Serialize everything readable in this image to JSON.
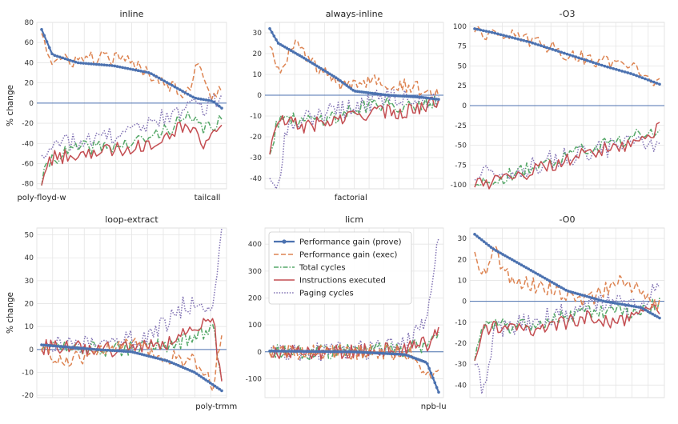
{
  "figure": {
    "ylabel": "% change"
  },
  "legend": {
    "location": "upper-left of center-bottom panel",
    "entries": [
      {
        "name": "Performance gain (prove)",
        "color": "#4C72B0",
        "style": "solid-markers"
      },
      {
        "name": "Performance gain (exec)",
        "color": "#DD8452",
        "style": "dashed"
      },
      {
        "name": "Total cycles",
        "color": "#55A868",
        "style": "dashdot"
      },
      {
        "name": "Instructions executed",
        "color": "#C44E52",
        "style": "solid"
      },
      {
        "name": "Paging cycles",
        "color": "#8172B3",
        "style": "dotted"
      }
    ]
  },
  "chart_data": [
    {
      "type": "line",
      "title": "inline",
      "ylabel": "% change",
      "ylim": [
        -85,
        80
      ],
      "yticks": [
        80,
        60,
        40,
        20,
        0,
        -20,
        -40,
        -60,
        -80
      ],
      "xticklabels": [
        {
          "label": "poly-floyd-w",
          "at": 0
        },
        {
          "label": "tailcall",
          "at": 0.92
        }
      ],
      "n": 70,
      "grid": true,
      "series": [
        {
          "name": "Performance gain (prove)",
          "anchors": [
            [
              0,
              73
            ],
            [
              0.06,
              48
            ],
            [
              0.2,
              40
            ],
            [
              0.4,
              37
            ],
            [
              0.6,
              30
            ],
            [
              0.75,
              15
            ],
            [
              0.85,
              5
            ],
            [
              0.95,
              2
            ],
            [
              1,
              -5
            ]
          ]
        },
        {
          "name": "Performance gain (exec)",
          "anchors": [
            [
              0,
              73
            ],
            [
              0.05,
              40
            ],
            [
              0.3,
              45
            ],
            [
              0.45,
              43
            ],
            [
              0.6,
              30
            ],
            [
              0.8,
              10
            ],
            [
              0.88,
              40
            ],
            [
              0.95,
              5
            ],
            [
              1,
              15
            ]
          ]
        },
        {
          "name": "Total cycles",
          "anchors": [
            [
              0,
              -78
            ],
            [
              0.05,
              -55
            ],
            [
              0.2,
              -45
            ],
            [
              0.45,
              -42
            ],
            [
              0.6,
              -35
            ],
            [
              0.8,
              -15
            ],
            [
              0.9,
              -25
            ],
            [
              1,
              -18
            ]
          ]
        },
        {
          "name": "Instructions executed",
          "anchors": [
            [
              0,
              -78
            ],
            [
              0.05,
              -55
            ],
            [
              0.2,
              -50
            ],
            [
              0.45,
              -45
            ],
            [
              0.6,
              -40
            ],
            [
              0.8,
              -20
            ],
            [
              0.9,
              -40
            ],
            [
              1,
              -15
            ]
          ]
        },
        {
          "name": "Paging cycles",
          "anchors": [
            [
              0,
              -47
            ],
            [
              0.1,
              -40
            ],
            [
              0.3,
              -35
            ],
            [
              0.5,
              -30
            ],
            [
              0.65,
              -15
            ],
            [
              0.8,
              -5
            ],
            [
              0.9,
              -5
            ],
            [
              1,
              10
            ]
          ]
        }
      ]
    },
    {
      "type": "line",
      "title": "always-inline",
      "ylim": [
        -45,
        35
      ],
      "yticks": [
        30,
        20,
        10,
        0,
        -10,
        -20,
        -30,
        -40
      ],
      "xticklabels": [
        {
          "label": "factorial",
          "at": 0.48
        }
      ],
      "n": 80,
      "grid": true,
      "series": [
        {
          "name": "Performance gain (prove)",
          "anchors": [
            [
              0,
              32
            ],
            [
              0.05,
              25
            ],
            [
              0.2,
              18
            ],
            [
              0.4,
              8
            ],
            [
              0.5,
              2
            ],
            [
              0.7,
              0
            ],
            [
              0.9,
              -1
            ],
            [
              1,
              -2
            ]
          ]
        },
        {
          "name": "Performance gain (exec)",
          "anchors": [
            [
              0,
              25
            ],
            [
              0.05,
              12
            ],
            [
              0.15,
              25
            ],
            [
              0.25,
              15
            ],
            [
              0.45,
              3
            ],
            [
              0.6,
              8
            ],
            [
              0.8,
              5
            ],
            [
              1,
              0
            ]
          ]
        },
        {
          "name": "Total cycles",
          "anchors": [
            [
              0,
              -27
            ],
            [
              0.05,
              -12
            ],
            [
              0.2,
              -12
            ],
            [
              0.4,
              -10
            ],
            [
              0.6,
              -4
            ],
            [
              0.8,
              -5
            ],
            [
              1,
              -2
            ]
          ]
        },
        {
          "name": "Instructions executed",
          "anchors": [
            [
              0,
              -27
            ],
            [
              0.05,
              -12
            ],
            [
              0.2,
              -15
            ],
            [
              0.4,
              -12
            ],
            [
              0.6,
              -8
            ],
            [
              0.8,
              -8
            ],
            [
              1,
              -3
            ]
          ]
        },
        {
          "name": "Paging cycles",
          "anchors": [
            [
              0,
              -38
            ],
            [
              0.05,
              -44
            ],
            [
              0.1,
              -15
            ],
            [
              0.3,
              -10
            ],
            [
              0.5,
              -5
            ],
            [
              0.75,
              0
            ],
            [
              1,
              -3
            ]
          ]
        }
      ]
    },
    {
      "type": "line",
      "title": "-O3",
      "ylim": [
        -105,
        105
      ],
      "yticks": [
        100,
        75,
        50,
        25,
        0,
        -25,
        -50,
        -75,
        -100
      ],
      "xticklabels": [],
      "n": 65,
      "grid": true,
      "series": [
        {
          "name": "Performance gain (prove)",
          "anchors": [
            [
              0,
              97
            ],
            [
              0.1,
              92
            ],
            [
              0.3,
              80
            ],
            [
              0.5,
              65
            ],
            [
              0.7,
              50
            ],
            [
              0.85,
              40
            ],
            [
              1,
              27
            ]
          ]
        },
        {
          "name": "Performance gain (exec)",
          "anchors": [
            [
              0,
              96
            ],
            [
              0.15,
              88
            ],
            [
              0.3,
              83
            ],
            [
              0.5,
              65
            ],
            [
              0.7,
              55
            ],
            [
              0.85,
              55
            ],
            [
              1,
              28
            ]
          ]
        },
        {
          "name": "Total cycles",
          "anchors": [
            [
              0,
              -97
            ],
            [
              0.2,
              -88
            ],
            [
              0.4,
              -70
            ],
            [
              0.6,
              -55
            ],
            [
              0.8,
              -45
            ],
            [
              1,
              -28
            ]
          ]
        },
        {
          "name": "Instructions executed",
          "anchors": [
            [
              0,
              -100
            ],
            [
              0.2,
              -90
            ],
            [
              0.4,
              -75
            ],
            [
              0.6,
              -60
            ],
            [
              0.8,
              -50
            ],
            [
              1,
              -28
            ]
          ]
        },
        {
          "name": "Paging cycles",
          "anchors": [
            [
              0,
              -90
            ],
            [
              0.2,
              -85
            ],
            [
              0.4,
              -70
            ],
            [
              0.6,
              -60
            ],
            [
              0.8,
              -50
            ],
            [
              1,
              -45
            ]
          ]
        }
      ]
    },
    {
      "type": "line",
      "title": "loop-extract",
      "ylabel": "% change",
      "ylim": [
        -21,
        53
      ],
      "yticks": [
        50,
        40,
        30,
        20,
        10,
        0,
        -10,
        -20
      ],
      "xticklabels": [
        {
          "label": "poly-trmm",
          "at": 0.97
        }
      ],
      "n": 80,
      "grid": true,
      "series": [
        {
          "name": "Performance gain (prove)",
          "anchors": [
            [
              0,
              2
            ],
            [
              0.3,
              0
            ],
            [
              0.5,
              -1
            ],
            [
              0.7,
              -5
            ],
            [
              0.85,
              -10
            ],
            [
              1,
              -18
            ]
          ]
        },
        {
          "name": "Performance gain (exec)",
          "anchors": [
            [
              0,
              0
            ],
            [
              0.1,
              -5
            ],
            [
              0.3,
              -2
            ],
            [
              0.5,
              2
            ],
            [
              0.7,
              -3
            ],
            [
              0.85,
              -5
            ],
            [
              0.95,
              -15
            ],
            [
              1,
              5
            ]
          ]
        },
        {
          "name": "Total cycles",
          "anchors": [
            [
              0,
              1
            ],
            [
              0.4,
              0
            ],
            [
              0.7,
              2
            ],
            [
              0.85,
              5
            ],
            [
              0.95,
              10
            ],
            [
              1,
              -15
            ]
          ]
        },
        {
          "name": "Instructions executed",
          "anchors": [
            [
              0,
              1
            ],
            [
              0.4,
              0
            ],
            [
              0.7,
              3
            ],
            [
              0.85,
              8
            ],
            [
              0.95,
              15
            ],
            [
              1,
              -16
            ]
          ]
        },
        {
          "name": "Paging cycles",
          "anchors": [
            [
              0,
              1
            ],
            [
              0.3,
              3
            ],
            [
              0.6,
              5
            ],
            [
              0.8,
              20
            ],
            [
              0.95,
              15
            ],
            [
              1,
              50
            ]
          ]
        }
      ]
    },
    {
      "type": "line",
      "title": "licm",
      "ylim": [
        -170,
        460
      ],
      "yticks": [
        400,
        300,
        200,
        100,
        0,
        -100
      ],
      "xticklabels": [
        {
          "label": "npb-lu",
          "at": 0.97
        }
      ],
      "n": 90,
      "grid": true,
      "series": [
        {
          "name": "Performance gain (prove)",
          "anchors": [
            [
              0,
              3
            ],
            [
              0.5,
              0
            ],
            [
              0.8,
              -10
            ],
            [
              0.93,
              -40
            ],
            [
              1,
              -150
            ]
          ]
        },
        {
          "name": "Performance gain (exec)",
          "anchors": [
            [
              0,
              0
            ],
            [
              0.5,
              0
            ],
            [
              0.85,
              -5
            ],
            [
              0.95,
              -100
            ],
            [
              1,
              -90
            ]
          ]
        },
        {
          "name": "Total cycles",
          "anchors": [
            [
              0,
              0
            ],
            [
              0.5,
              0
            ],
            [
              0.8,
              10
            ],
            [
              0.93,
              30
            ],
            [
              1,
              80
            ]
          ]
        },
        {
          "name": "Instructions executed",
          "anchors": [
            [
              0,
              0
            ],
            [
              0.5,
              0
            ],
            [
              0.8,
              10
            ],
            [
              0.93,
              30
            ],
            [
              1,
              70
            ]
          ]
        },
        {
          "name": "Paging cycles",
          "anchors": [
            [
              0,
              0
            ],
            [
              0.5,
              5
            ],
            [
              0.8,
              20
            ],
            [
              0.93,
              110
            ],
            [
              1,
              430
            ]
          ]
        }
      ]
    },
    {
      "type": "line",
      "title": "-O0",
      "ylim": [
        -46,
        35
      ],
      "yticks": [
        30,
        20,
        10,
        0,
        -10,
        -20,
        -30,
        -40
      ],
      "xticklabels": [],
      "n": 80,
      "grid": true,
      "series": [
        {
          "name": "Performance gain (prove)",
          "anchors": [
            [
              0,
              32
            ],
            [
              0.1,
              25
            ],
            [
              0.3,
              15
            ],
            [
              0.5,
              5
            ],
            [
              0.7,
              0
            ],
            [
              0.9,
              -3
            ],
            [
              1,
              -8
            ]
          ]
        },
        {
          "name": "Performance gain (exec)",
          "anchors": [
            [
              0,
              24
            ],
            [
              0.05,
              12
            ],
            [
              0.1,
              25
            ],
            [
              0.2,
              10
            ],
            [
              0.45,
              5
            ],
            [
              0.6,
              0
            ],
            [
              0.8,
              10
            ],
            [
              1,
              -2
            ]
          ]
        },
        {
          "name": "Total cycles",
          "anchors": [
            [
              0,
              -28
            ],
            [
              0.05,
              -12
            ],
            [
              0.2,
              -12
            ],
            [
              0.4,
              -10
            ],
            [
              0.6,
              -5
            ],
            [
              0.8,
              -5
            ],
            [
              1,
              -2
            ]
          ]
        },
        {
          "name": "Instructions executed",
          "anchors": [
            [
              0,
              -28
            ],
            [
              0.05,
              -12
            ],
            [
              0.2,
              -14
            ],
            [
              0.4,
              -12
            ],
            [
              0.6,
              -8
            ],
            [
              0.8,
              -10
            ],
            [
              1,
              -3
            ]
          ]
        },
        {
          "name": "Paging cycles",
          "anchors": [
            [
              0,
              -30
            ],
            [
              0.05,
              -44
            ],
            [
              0.1,
              -15
            ],
            [
              0.3,
              -10
            ],
            [
              0.5,
              -5
            ],
            [
              0.7,
              0
            ],
            [
              0.9,
              -3
            ],
            [
              1,
              10
            ]
          ]
        }
      ]
    }
  ]
}
